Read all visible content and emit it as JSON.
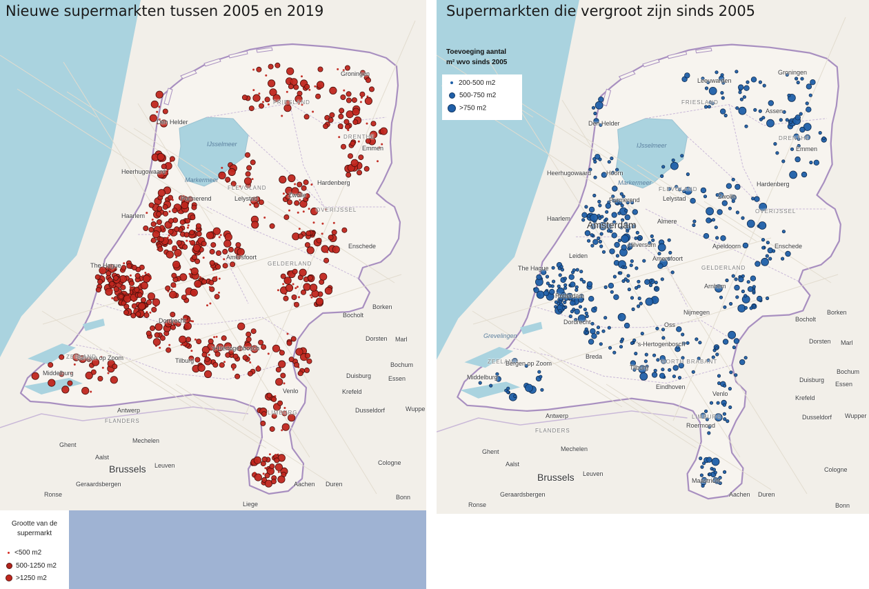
{
  "left_map": {
    "title": "Nieuwe supermarkten tussen 2005 en 2019",
    "legend": {
      "title": "Grootte van de supermarkt",
      "items": [
        {
          "label": "<500 m2",
          "color": "#d62b22",
          "size_class": "small"
        },
        {
          "label": "500-1250 m2",
          "color": "#b2241c",
          "size_class": "medium"
        },
        {
          "label": ">1250 m2",
          "color": "#b2241c",
          "size_class": "large"
        }
      ]
    },
    "places": {
      "groningen": "Groningen",
      "friesland": "FRIESLAND",
      "den_helder": "Den Helder",
      "ijsselmeer": "IJsselmeer",
      "drenthe": "DRENTHE",
      "emmen": "Emmen",
      "heerhugowaard": "Heerhugowaard",
      "markermeer": "Markermeer",
      "flevoland": "FLEVOLAND",
      "zwolle": "Zwolle",
      "hardenberg": "Hardenberg",
      "purmerend": "Purmerend",
      "lelystad": "Lelystad",
      "haarlem": "Haarlem",
      "overijssel": "OVERIJSSEL",
      "enschede": "Enschede",
      "the_hague": "The Hague",
      "amersfoort": "Amersfoort",
      "gelderland": "GELDERLAND",
      "dordrecht": "Dordrecht",
      "borken": "Borken",
      "bocholt": "Bocholt",
      "dorsten": "Dorsten",
      "marl": "Marl",
      "hertogenbosch": "'s-Hertogenbosch",
      "bergen_op_zoom": "Bergen op Zoom",
      "zeeland": "ZEELAND",
      "middelburg": "Middelburg",
      "tilburg": "Tilburg",
      "bochum": "Bochum",
      "duisburg": "Duisburg",
      "essen": "Essen",
      "krefeld": "Krefeld",
      "antwerp": "Antwerp",
      "dusseldorf": "Dusseldorf",
      "wuppertal": "Wuppe",
      "flanders": "FLANDERS",
      "limburg": "LIMBURG",
      "ghent": "Ghent",
      "mechelen": "Mechelen",
      "aalst": "Aalst",
      "leuven": "Leuven",
      "brussels": "Brussels",
      "cologne": "Cologne",
      "geraardsbergen": "Geraardsbergen",
      "aachen": "Aachen",
      "duren": "Duren",
      "ronse": "Ronse",
      "bonn": "Bonn",
      "liege": "Liege",
      "venlo": "Venlo"
    }
  },
  "right_map": {
    "title": "Supermarkten die vergroot zijn sinds 2005",
    "legend": {
      "title_line1": "Toevoeging aantal",
      "title_line2": "m² wvo sinds 2005",
      "items": [
        {
          "label": "200-500 m2",
          "color": "#1f5fa8",
          "size_class": "small"
        },
        {
          "label": "500-750 m2",
          "color": "#1f5fa8",
          "size_class": "medium"
        },
        {
          "label": ">750 m2",
          "color": "#1f5fa8",
          "size_class": "large"
        }
      ]
    },
    "places": {
      "groningen": "Groningen",
      "leeuwarden": "Leeuwarden",
      "friesland": "FRIESLAND",
      "assen": "Assen",
      "den_helder": "Den Helder",
      "ijsselmeer": "IJsselmeer",
      "drenthe": "DRENTHE",
      "emmen": "Emmen",
      "heerhugowaard": "Heerhugowaard",
      "hoorn": "Hoorn",
      "markermeer": "Markermeer",
      "flevoland": "FLEVOLAND",
      "hardenberg": "Hardenberg",
      "zwolle": "Zwolle",
      "purmerend": "Purmerend",
      "lelystad": "Lelystad",
      "haarlem": "Haarlem",
      "amsterdam": "Amsterdam",
      "almere": "Almere",
      "overijssel": "OVERIJSSEL",
      "hilversum": "Hilversum",
      "apeldoorn": "Apeldoorn",
      "enschede": "Enschede",
      "leiden": "Leiden",
      "amersfoort": "Amersfoort",
      "the_hague": "The Hague",
      "gelderland": "GELDERLAND",
      "arnhem": "Arnhem",
      "rotterdam": "Rotterdam",
      "borken": "Borken",
      "bocholt": "Bocholt",
      "dordrecht": "Dordrecht",
      "nijmegen": "Nijmegen",
      "oss": "Oss",
      "grevelingen": "Grevelingen",
      "hertogenbosch": "'s-Hertogenbosch",
      "dorsten": "Dorsten",
      "marl": "Marl",
      "breda": "Breda",
      "zeeland": "ZEELAND",
      "bergen_op_zoom": "Bergen op Zoom",
      "north_brabant": "NORTH BRABANT",
      "middelburg": "Middelburg",
      "tilburg": "Tilburg",
      "eindhoven": "Eindhoven",
      "bochum": "Bochum",
      "duisburg": "Duisburg",
      "essen": "Essen",
      "venlo": "Venlo",
      "krefeld": "Krefeld",
      "antwerp": "Antwerp",
      "dusseldorf": "Dusseldorf",
      "wuppertal": "Wupper",
      "flanders": "FLANDERS",
      "limburg": "LIMBURG",
      "roermond": "Roermond",
      "ghent": "Ghent",
      "mechelen": "Mechelen",
      "aalst": "Aalst",
      "leuven": "Leuven",
      "brussels": "Brussels",
      "maastricht": "Maastricht",
      "cologne": "Cologne",
      "geraardsbergen": "Geraardsbergen",
      "aachen": "Aachen",
      "duren": "Duren",
      "ronse": "Ronse",
      "bonn": "Bonn"
    }
  },
  "colors": {
    "sea": "#aad3df",
    "land": "#f2efe9",
    "border": "#a88fc0",
    "left_dot": "#c0261e",
    "right_dot": "#1f5fa8",
    "legend_band": "#9fb3d3"
  }
}
